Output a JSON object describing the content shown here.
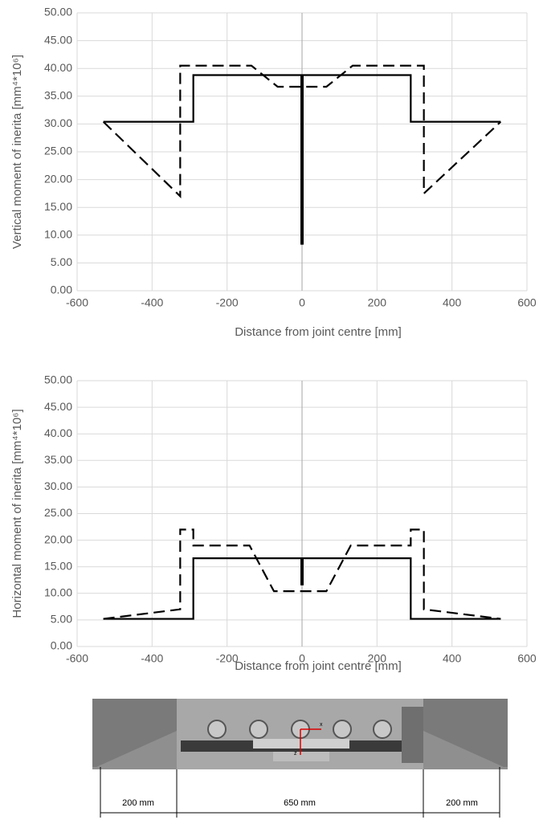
{
  "chart_data": [
    {
      "type": "line",
      "x_label": "Distance from joint centre [mm]",
      "y_label": "Vertical moment of inerita [mm⁴*10⁶]",
      "xlim": [
        -600,
        600
      ],
      "xticks": [
        -600,
        -400,
        -200,
        0,
        200,
        400,
        600
      ],
      "ylim": [
        0,
        50
      ],
      "yticks": [
        {
          "value": 0,
          "label": "0.00"
        },
        {
          "value": 5,
          "label": "5.00"
        },
        {
          "value": 10,
          "label": "10.00"
        },
        {
          "value": 15,
          "label": "15.00"
        },
        {
          "value": 20,
          "label": "20.00"
        },
        {
          "value": 25,
          "label": "25.00"
        },
        {
          "value": 30,
          "label": "30.00"
        },
        {
          "value": 35,
          "label": "35.00"
        },
        {
          "value": 40,
          "label": "40.00"
        },
        {
          "value": 45,
          "label": "45.00"
        },
        {
          "value": 50,
          "label": "50.00"
        }
      ],
      "grid": true,
      "series": [
        {
          "color": "#000000",
          "style": "solid",
          "x": [
            -530,
            -290,
            -290,
            290,
            290,
            530
          ],
          "values": [
            30.4,
            30.4,
            38.8,
            38.8,
            30.4,
            30.4
          ]
        },
        {
          "color": "#000000",
          "style": "thick",
          "x": [
            0,
            0
          ],
          "values": [
            8.3,
            38.8
          ]
        },
        {
          "color": "#000000",
          "style": "dashed",
          "x": [
            -530,
            -325,
            -325,
            -135,
            -65,
            65,
            135,
            325,
            325,
            530
          ],
          "values": [
            30.4,
            17,
            40.5,
            40.5,
            36.7,
            36.7,
            40.5,
            40.5,
            17.5,
            30.4
          ]
        }
      ]
    },
    {
      "type": "line",
      "x_label": "Distance from joint centre [mm]",
      "y_label": "Horizontal moment of inerita [mm⁴*10⁶]",
      "xlim": [
        -600,
        600
      ],
      "xticks": [
        -600,
        -400,
        -200,
        0,
        200,
        400,
        600
      ],
      "ylim": [
        0,
        50
      ],
      "yticks": [
        {
          "value": 0,
          "label": "0.00"
        },
        {
          "value": 5,
          "label": "5.00"
        },
        {
          "value": 10,
          "label": "10.00"
        },
        {
          "value": 15,
          "label": "15.00"
        },
        {
          "value": 20,
          "label": "20.00"
        },
        {
          "value": 25,
          "label": "25.00"
        },
        {
          "value": 30,
          "label": "30.00"
        },
        {
          "value": 35,
          "label": "35.00"
        },
        {
          "value": 40,
          "label": "40.00"
        },
        {
          "value": 45,
          "label": "45.00"
        },
        {
          "value": 50,
          "label": "50.00"
        }
      ],
      "grid": true,
      "series": [
        {
          "color": "#000000",
          "style": "solid",
          "x": [
            -530,
            -290,
            -290,
            290,
            290,
            530
          ],
          "values": [
            5.2,
            5.2,
            16.6,
            16.6,
            5.2,
            5.2
          ]
        },
        {
          "color": "#000000",
          "style": "thick",
          "x": [
            0,
            0
          ],
          "values": [
            11.5,
            16.6
          ]
        },
        {
          "color": "#000000",
          "style": "dashed",
          "x": [
            -530,
            -325,
            -325,
            -290,
            -290,
            -140,
            -75,
            65,
            130,
            290,
            290,
            325,
            325,
            530
          ],
          "values": [
            5.2,
            7,
            22,
            22,
            19,
            19,
            10.4,
            10.4,
            19,
            19,
            22,
            22,
            7,
            5.2
          ]
        }
      ]
    }
  ],
  "diagram": {
    "dimensions": [
      "200 mm",
      "650 mm",
      "200 mm"
    ],
    "axis_labels": [
      "x",
      "z"
    ]
  }
}
